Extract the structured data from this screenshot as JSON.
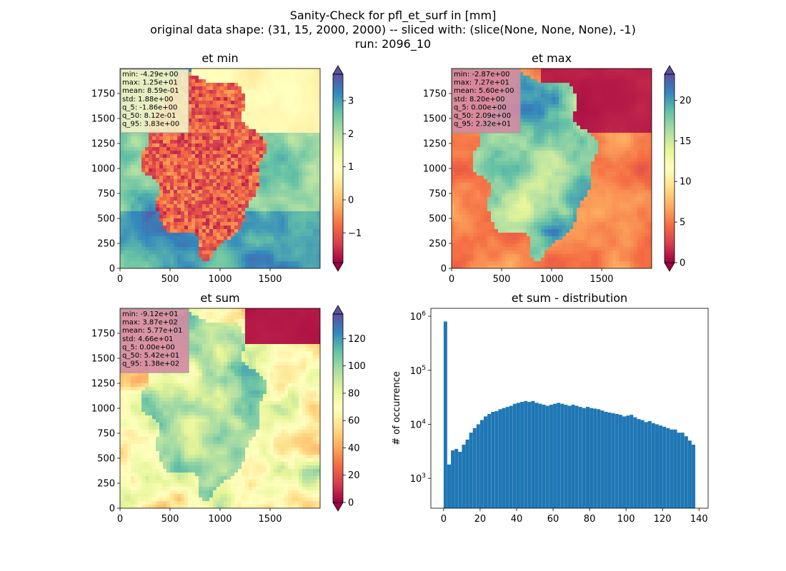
{
  "figure": {
    "title_lines": [
      "Sanity-Check for pfl_et_surf in [mm]",
      "original data shape: (31, 15, 2000, 2000) -- sliced with: (slice(None, None, None), -1)",
      "run: 2096_10"
    ]
  },
  "colormap": {
    "name": "Spectral",
    "stops": [
      "#9e0142",
      "#d53e4f",
      "#f46d43",
      "#fdae61",
      "#fee08b",
      "#ffffbf",
      "#e6f598",
      "#abdda4",
      "#66c2a5",
      "#3288bd",
      "#5e4fa2"
    ]
  },
  "chart_data": [
    {
      "type": "heatmap",
      "title": "et min",
      "x_ticks": [
        "0",
        "500",
        "1000",
        "1500"
      ],
      "y_ticks": [
        "0",
        "250",
        "500",
        "750",
        "1000",
        "1250",
        "1500",
        "1750"
      ],
      "xlim": [
        0,
        2000
      ],
      "ylim": [
        0,
        2000
      ],
      "colorbar": {
        "vmin": -1.9,
        "vmax": 3.8,
        "ticks": [
          "−1",
          "0",
          "1",
          "2",
          "3"
        ],
        "tick_values": [
          -1,
          0,
          1,
          2,
          3
        ]
      },
      "stats": [
        "min: -4.29e+00",
        "max: 1.25e+01",
        "mean: 8.59e-01",
        "std: 1.88e+00",
        "q_5: -1.86e+00",
        "q_50: 8.12e-01",
        "q_95: 3.83e+00"
      ],
      "stats_box_color": "#f3f2c8"
    },
    {
      "type": "heatmap",
      "title": "et max",
      "x_ticks": [
        "0",
        "500",
        "1000",
        "1500"
      ],
      "y_ticks": [
        "0",
        "250",
        "500",
        "750",
        "1000",
        "1250",
        "1500",
        "1750"
      ],
      "xlim": [
        0,
        2000
      ],
      "ylim": [
        0,
        2000
      ],
      "colorbar": {
        "vmin": 0,
        "vmax": 23.2,
        "ticks": [
          "0",
          "5",
          "10",
          "15",
          "20"
        ],
        "tick_values": [
          0,
          5,
          10,
          15,
          20
        ]
      },
      "stats": [
        "min: -2.87e+00",
        "max: 7.27e+01",
        "mean: 5.60e+00",
        "std: 8.20e+00",
        "q_5: 0.00e+00",
        "q_50: 2.09e+00",
        "q_95: 2.32e+01"
      ],
      "stats_box_color": "#d48aa3"
    },
    {
      "type": "heatmap",
      "title": "et sum",
      "x_ticks": [
        "0",
        "500",
        "1000",
        "1500"
      ],
      "y_ticks": [
        "0",
        "250",
        "500",
        "750",
        "1000",
        "1250",
        "1500",
        "1750"
      ],
      "xlim": [
        0,
        2000
      ],
      "ylim": [
        0,
        2000
      ],
      "colorbar": {
        "vmin": 0,
        "vmax": 138,
        "ticks": [
          "0",
          "20",
          "40",
          "60",
          "80",
          "100",
          "120"
        ],
        "tick_values": [
          0,
          20,
          40,
          60,
          80,
          100,
          120
        ]
      },
      "stats": [
        "min: -9.12e+01",
        "max: 3.87e+02",
        "mean: 5.77e+01",
        "std: 4.66e+01",
        "q_5: 0.00e+00",
        "q_50: 5.42e+01",
        "q_95: 1.38e+02"
      ],
      "stats_box_color": "#d48aa3"
    },
    {
      "type": "bar",
      "title": "et sum - distribution",
      "ylabel": "# of occurrence",
      "xlabel": "",
      "x_ticks": [
        "0",
        "20",
        "40",
        "60",
        "80",
        "100",
        "120",
        "140"
      ],
      "x_tick_values": [
        0,
        20,
        40,
        60,
        80,
        100,
        120,
        140
      ],
      "y_ticks": [
        "10^3",
        "10^4",
        "10^5",
        "10^6"
      ],
      "y_tick_values": [
        1000,
        10000,
        100000,
        1000000
      ],
      "y_scale": "log",
      "xlim": [
        -7,
        145
      ],
      "ylim": [
        280,
        1400000
      ],
      "bar_color": "#1f77b4",
      "x": [
        0,
        2,
        4,
        6,
        8,
        10,
        12,
        14,
        16,
        18,
        20,
        22,
        24,
        26,
        28,
        30,
        32,
        34,
        36,
        38,
        40,
        42,
        44,
        46,
        48,
        50,
        52,
        54,
        56,
        58,
        60,
        62,
        64,
        66,
        68,
        70,
        72,
        74,
        76,
        78,
        80,
        82,
        84,
        86,
        88,
        90,
        92,
        94,
        96,
        98,
        100,
        102,
        104,
        106,
        108,
        110,
        112,
        114,
        116,
        118,
        120,
        122,
        124,
        126,
        128,
        130,
        132,
        134,
        136
      ],
      "values": [
        800000,
        1800,
        3300,
        3500,
        3100,
        4200,
        5200,
        7000,
        8500,
        10000,
        12000,
        14000,
        15500,
        17000,
        17500,
        19000,
        20000,
        21000,
        22000,
        24000,
        25000,
        26000,
        27000,
        26000,
        27000,
        25000,
        24000,
        23000,
        22000,
        23000,
        24000,
        25000,
        24000,
        23000,
        22000,
        23000,
        22000,
        21000,
        20000,
        21000,
        20000,
        19500,
        19000,
        18000,
        17000,
        16500,
        16000,
        15500,
        15000,
        14000,
        14500,
        15000,
        13500,
        12500,
        12000,
        11000,
        11500,
        10500,
        10000,
        9500,
        9000,
        8500,
        8000,
        8000,
        7000,
        7000,
        6000,
        5000,
        4200
      ]
    }
  ]
}
